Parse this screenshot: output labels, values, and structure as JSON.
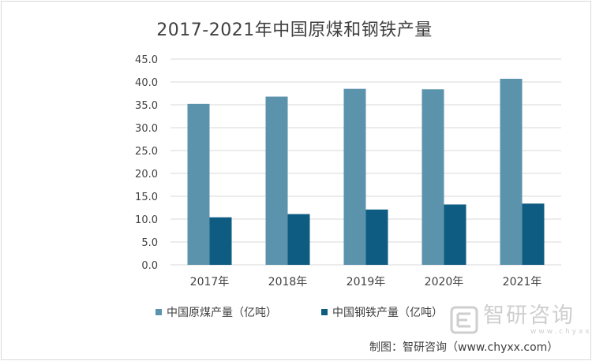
{
  "chart_data": {
    "type": "bar",
    "title": "2017-2021年中国原煤和钢铁产量",
    "categories": [
      "2017年",
      "2018年",
      "2019年",
      "2020年",
      "2021年"
    ],
    "series": [
      {
        "name": "中国原煤产量（亿吨）",
        "color": "#5b93ad",
        "values": [
          35.2,
          36.8,
          38.5,
          38.4,
          40.7
        ]
      },
      {
        "name": "中国钢铁产量（亿吨）",
        "color": "#0f5c82",
        "values": [
          10.4,
          11.1,
          12.1,
          13.2,
          13.4
        ]
      }
    ],
    "ylim": [
      0,
      45
    ],
    "ytick_step": 5,
    "ytick_labels": [
      "0.0",
      "5.0",
      "10.0",
      "15.0",
      "20.0",
      "25.0",
      "30.0",
      "35.0",
      "40.0",
      "45.0"
    ],
    "xlabel": "",
    "ylabel": "",
    "grid": true,
    "legend": "bottom"
  },
  "watermark": {
    "name": "智研咨询",
    "url": "www.chyxx.com"
  },
  "source_note": "制图：智研咨询（www.chyxx.com）",
  "colors": {
    "text": "#404040",
    "grid": "#d9d9d9"
  }
}
